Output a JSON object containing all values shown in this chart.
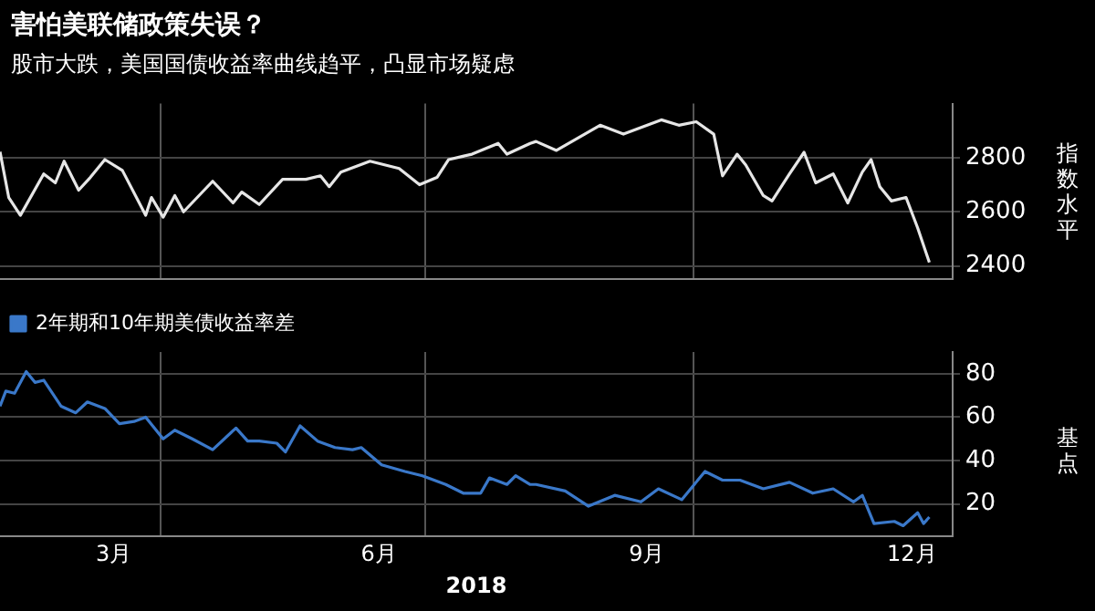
{
  "chart_data": [
    {
      "type": "line",
      "title": "害怕美联储政策失误？",
      "subtitle": "股市大跌，美国国债收益率曲线趋平，凸显市场疑虑",
      "ylabel": "指数水平",
      "tick_labels": "y",
      "grid": true,
      "xlim": [
        "2018-02-05",
        "2018-12-29"
      ],
      "xticks": [
        {
          "value": "2018-04-01",
          "label": null
        },
        {
          "value": "2018-07-01",
          "label": null
        },
        {
          "value": "2018-10-01",
          "label": null
        }
      ],
      "ylim": [
        2350,
        3000
      ],
      "yticks": [
        2400,
        2600,
        2800
      ],
      "series": [
        {
          "color": "#e6e6e6",
          "x": [
            "2018-02-05",
            "2018-02-08",
            "2018-02-12",
            "2018-02-20",
            "2018-02-24",
            "2018-02-27",
            "2018-03-04",
            "2018-03-08",
            "2018-03-13",
            "2018-03-19",
            "2018-03-27",
            "2018-03-29",
            "2018-04-02",
            "2018-04-06",
            "2018-04-09",
            "2018-04-19",
            "2018-04-26",
            "2018-04-29",
            "2018-05-05",
            "2018-05-13",
            "2018-05-21",
            "2018-05-26",
            "2018-05-29",
            "2018-06-02",
            "2018-06-12",
            "2018-06-22",
            "2018-06-29",
            "2018-07-05",
            "2018-07-09",
            "2018-07-17",
            "2018-07-26",
            "2018-07-29",
            "2018-08-06",
            "2018-08-08",
            "2018-08-15",
            "2018-08-30",
            "2018-09-07",
            "2018-09-20",
            "2018-09-26",
            "2018-10-02",
            "2018-10-08",
            "2018-10-11",
            "2018-10-16",
            "2018-10-19",
            "2018-10-25",
            "2018-10-28",
            "2018-11-03",
            "2018-11-08",
            "2018-11-12",
            "2018-11-18",
            "2018-11-23",
            "2018-11-28",
            "2018-12-01",
            "2018-12-04",
            "2018-12-08",
            "2018-12-13",
            "2018-12-17",
            "2018-12-21"
          ],
          "values": [
            2822,
            2653,
            2587,
            2740,
            2707,
            2787,
            2680,
            2727,
            2793,
            2753,
            2587,
            2653,
            2580,
            2660,
            2600,
            2713,
            2633,
            2673,
            2627,
            2720,
            2720,
            2733,
            2693,
            2747,
            2787,
            2760,
            2700,
            2727,
            2793,
            2813,
            2853,
            2813,
            2853,
            2860,
            2827,
            2920,
            2887,
            2940,
            2920,
            2933,
            2887,
            2733,
            2813,
            2773,
            2660,
            2640,
            2740,
            2820,
            2707,
            2740,
            2633,
            2747,
            2793,
            2693,
            2640,
            2653,
            2540,
            2413
          ]
        }
      ]
    },
    {
      "type": "line",
      "ylabel": "基点",
      "xlabel": "2018",
      "legend": "top left",
      "grid": true,
      "xlim": [
        "2018-02-05",
        "2018-12-29"
      ],
      "xticks": [
        {
          "value": "2018-03-16",
          "label": "3月"
        },
        {
          "value": "2018-04-01",
          "label": null
        },
        {
          "value": "2018-06-15",
          "label": "6月"
        },
        {
          "value": "2018-07-01",
          "label": null
        },
        {
          "value": "2018-09-15",
          "label": "9月"
        },
        {
          "value": "2018-10-01",
          "label": null
        },
        {
          "value": "2018-12-15",
          "label": "12月"
        }
      ],
      "ylim": [
        5,
        90
      ],
      "yticks": [
        20,
        40,
        60,
        80
      ],
      "series": [
        {
          "name": "2年期和10年期美债收益率差",
          "color": "#3a78c9",
          "x": [
            "2018-02-05",
            "2018-02-07",
            "2018-02-10",
            "2018-02-14",
            "2018-02-17",
            "2018-02-20",
            "2018-02-26",
            "2018-03-03",
            "2018-03-07",
            "2018-03-13",
            "2018-03-18",
            "2018-03-23",
            "2018-03-27",
            "2018-04-02",
            "2018-04-06",
            "2018-04-12",
            "2018-04-19",
            "2018-04-27",
            "2018-05-01",
            "2018-05-05",
            "2018-05-11",
            "2018-05-14",
            "2018-05-19",
            "2018-05-25",
            "2018-05-31",
            "2018-06-06",
            "2018-06-09",
            "2018-06-16",
            "2018-06-24",
            "2018-06-30",
            "2018-07-08",
            "2018-07-14",
            "2018-07-20",
            "2018-07-23",
            "2018-07-29",
            "2018-08-01",
            "2018-08-06",
            "2018-08-08",
            "2018-08-18",
            "2018-08-26",
            "2018-09-04",
            "2018-09-13",
            "2018-09-19",
            "2018-09-27",
            "2018-10-05",
            "2018-10-11",
            "2018-10-17",
            "2018-10-25",
            "2018-11-03",
            "2018-11-11",
            "2018-11-18",
            "2018-11-25",
            "2018-11-28",
            "2018-12-02",
            "2018-12-09",
            "2018-12-12",
            "2018-12-17",
            "2018-12-19",
            "2018-12-21"
          ],
          "values": [
            65,
            72,
            71,
            81,
            76,
            77,
            65,
            62,
            67,
            64,
            57,
            58,
            60,
            50,
            54,
            50,
            45,
            55,
            49,
            49,
            48,
            44,
            56,
            49,
            46,
            45,
            46,
            38,
            35,
            33,
            29,
            25,
            25,
            32,
            29,
            33,
            29,
            29,
            26,
            19,
            24,
            21,
            27,
            22,
            35,
            31,
            31,
            27,
            30,
            25,
            27,
            21,
            24,
            11,
            12,
            10,
            16,
            11,
            14
          ]
        }
      ]
    }
  ]
}
